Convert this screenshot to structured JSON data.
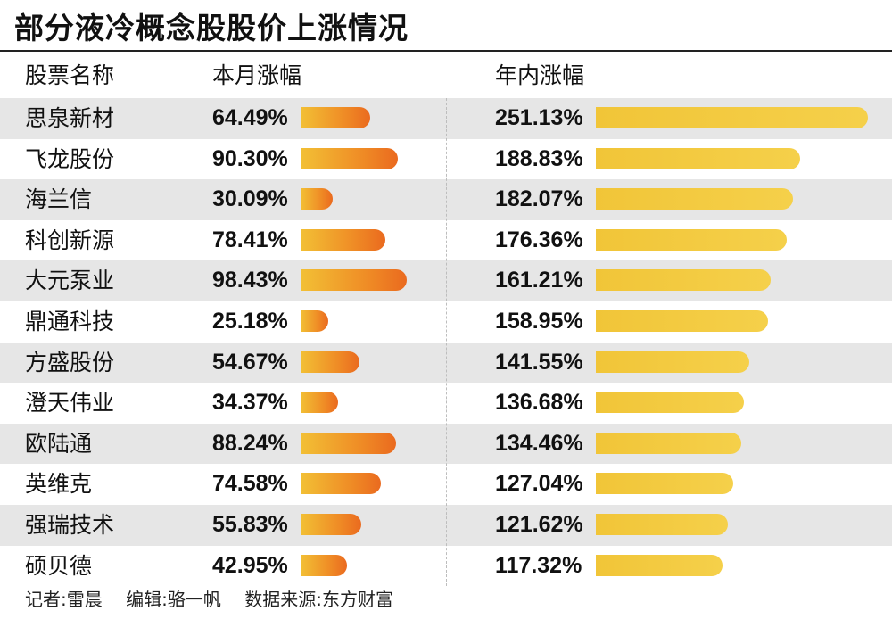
{
  "chart_data": {
    "type": "table",
    "title": "部分液冷概念股股价上涨情况",
    "columns": [
      "股票名称",
      "本月涨幅",
      "年内涨幅"
    ],
    "rows": [
      {
        "name": "思泉新材",
        "month": 64.49,
        "month_label": "64.49%",
        "ytd": 251.13,
        "ytd_label": "251.13%"
      },
      {
        "name": "飞龙股份",
        "month": 90.3,
        "month_label": "90.30%",
        "ytd": 188.83,
        "ytd_label": "188.83%"
      },
      {
        "name": "海兰信",
        "month": 30.09,
        "month_label": "30.09%",
        "ytd": 182.07,
        "ytd_label": "182.07%"
      },
      {
        "name": "科创新源",
        "month": 78.41,
        "month_label": "78.41%",
        "ytd": 176.36,
        "ytd_label": "176.36%"
      },
      {
        "name": "大元泵业",
        "month": 98.43,
        "month_label": "98.43%",
        "ytd": 161.21,
        "ytd_label": "161.21%"
      },
      {
        "name": "鼎通科技",
        "month": 25.18,
        "month_label": "25.18%",
        "ytd": 158.95,
        "ytd_label": "158.95%"
      },
      {
        "name": "方盛股份",
        "month": 54.67,
        "month_label": "54.67%",
        "ytd": 141.55,
        "ytd_label": "141.55%"
      },
      {
        "name": "澄天伟业",
        "month": 34.37,
        "month_label": "34.37%",
        "ytd": 136.68,
        "ytd_label": "136.68%"
      },
      {
        "name": "欧陆通",
        "month": 88.24,
        "month_label": "88.24%",
        "ytd": 134.46,
        "ytd_label": "134.46%"
      },
      {
        "name": "英维克",
        "month": 74.58,
        "month_label": "74.58%",
        "ytd": 127.04,
        "ytd_label": "127.04%"
      },
      {
        "name": "强瑞技术",
        "month": 55.83,
        "month_label": "55.83%",
        "ytd": 121.62,
        "ytd_label": "121.62%"
      },
      {
        "name": "硕贝德",
        "month": 42.95,
        "month_label": "42.95%",
        "ytd": 117.32,
        "ytd_label": "117.32%"
      }
    ]
  },
  "footer": {
    "reporter": "记者:雷晨",
    "editor": "编辑:骆一帆",
    "source": "数据来源:东方财富"
  },
  "colors": {
    "month_bar_start": "#f2c035",
    "month_bar_end": "#ea6a1f",
    "ytd_bar": "#f3c940",
    "row_shade": "#e6e6e6"
  }
}
